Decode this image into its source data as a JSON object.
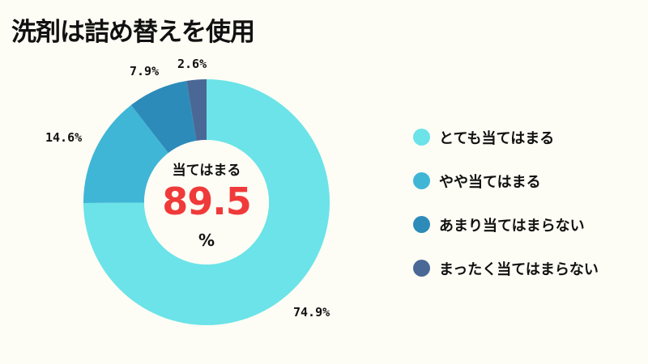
{
  "title": "洗剤は詰め替えを使用",
  "center": {
    "caption": "当てはまる",
    "value": "89.5",
    "unit": "%"
  },
  "legend": [
    {
      "label": "とても当てはまる",
      "color": "#6be3e8"
    },
    {
      "label": "やや当てはまる",
      "color": "#40b6d6"
    },
    {
      "label": "あまり当てはまらない",
      "color": "#2d8bba"
    },
    {
      "label": "まったく当てはまらない",
      "color": "#4a6896"
    }
  ],
  "slice_labels": [
    "74.9%",
    "14.6%",
    "7.9%",
    "2.6%"
  ],
  "chart_data": {
    "type": "pie",
    "subtype": "donut",
    "title": "洗剤は詰め替えを使用",
    "categories": [
      "とても当てはまる",
      "やや当てはまる",
      "あまり当てはまらない",
      "まったく当てはまらない"
    ],
    "values": [
      74.9,
      14.6,
      7.9,
      2.6
    ],
    "unit": "%",
    "colors": [
      "#6be3e8",
      "#40b6d6",
      "#2d8bba",
      "#4a6896"
    ],
    "center_annotation": {
      "label": "当てはまる",
      "value": 89.5,
      "unit": "%"
    },
    "start_angle": "12 o'clock",
    "direction": "clockwise",
    "legend_position": "right"
  }
}
